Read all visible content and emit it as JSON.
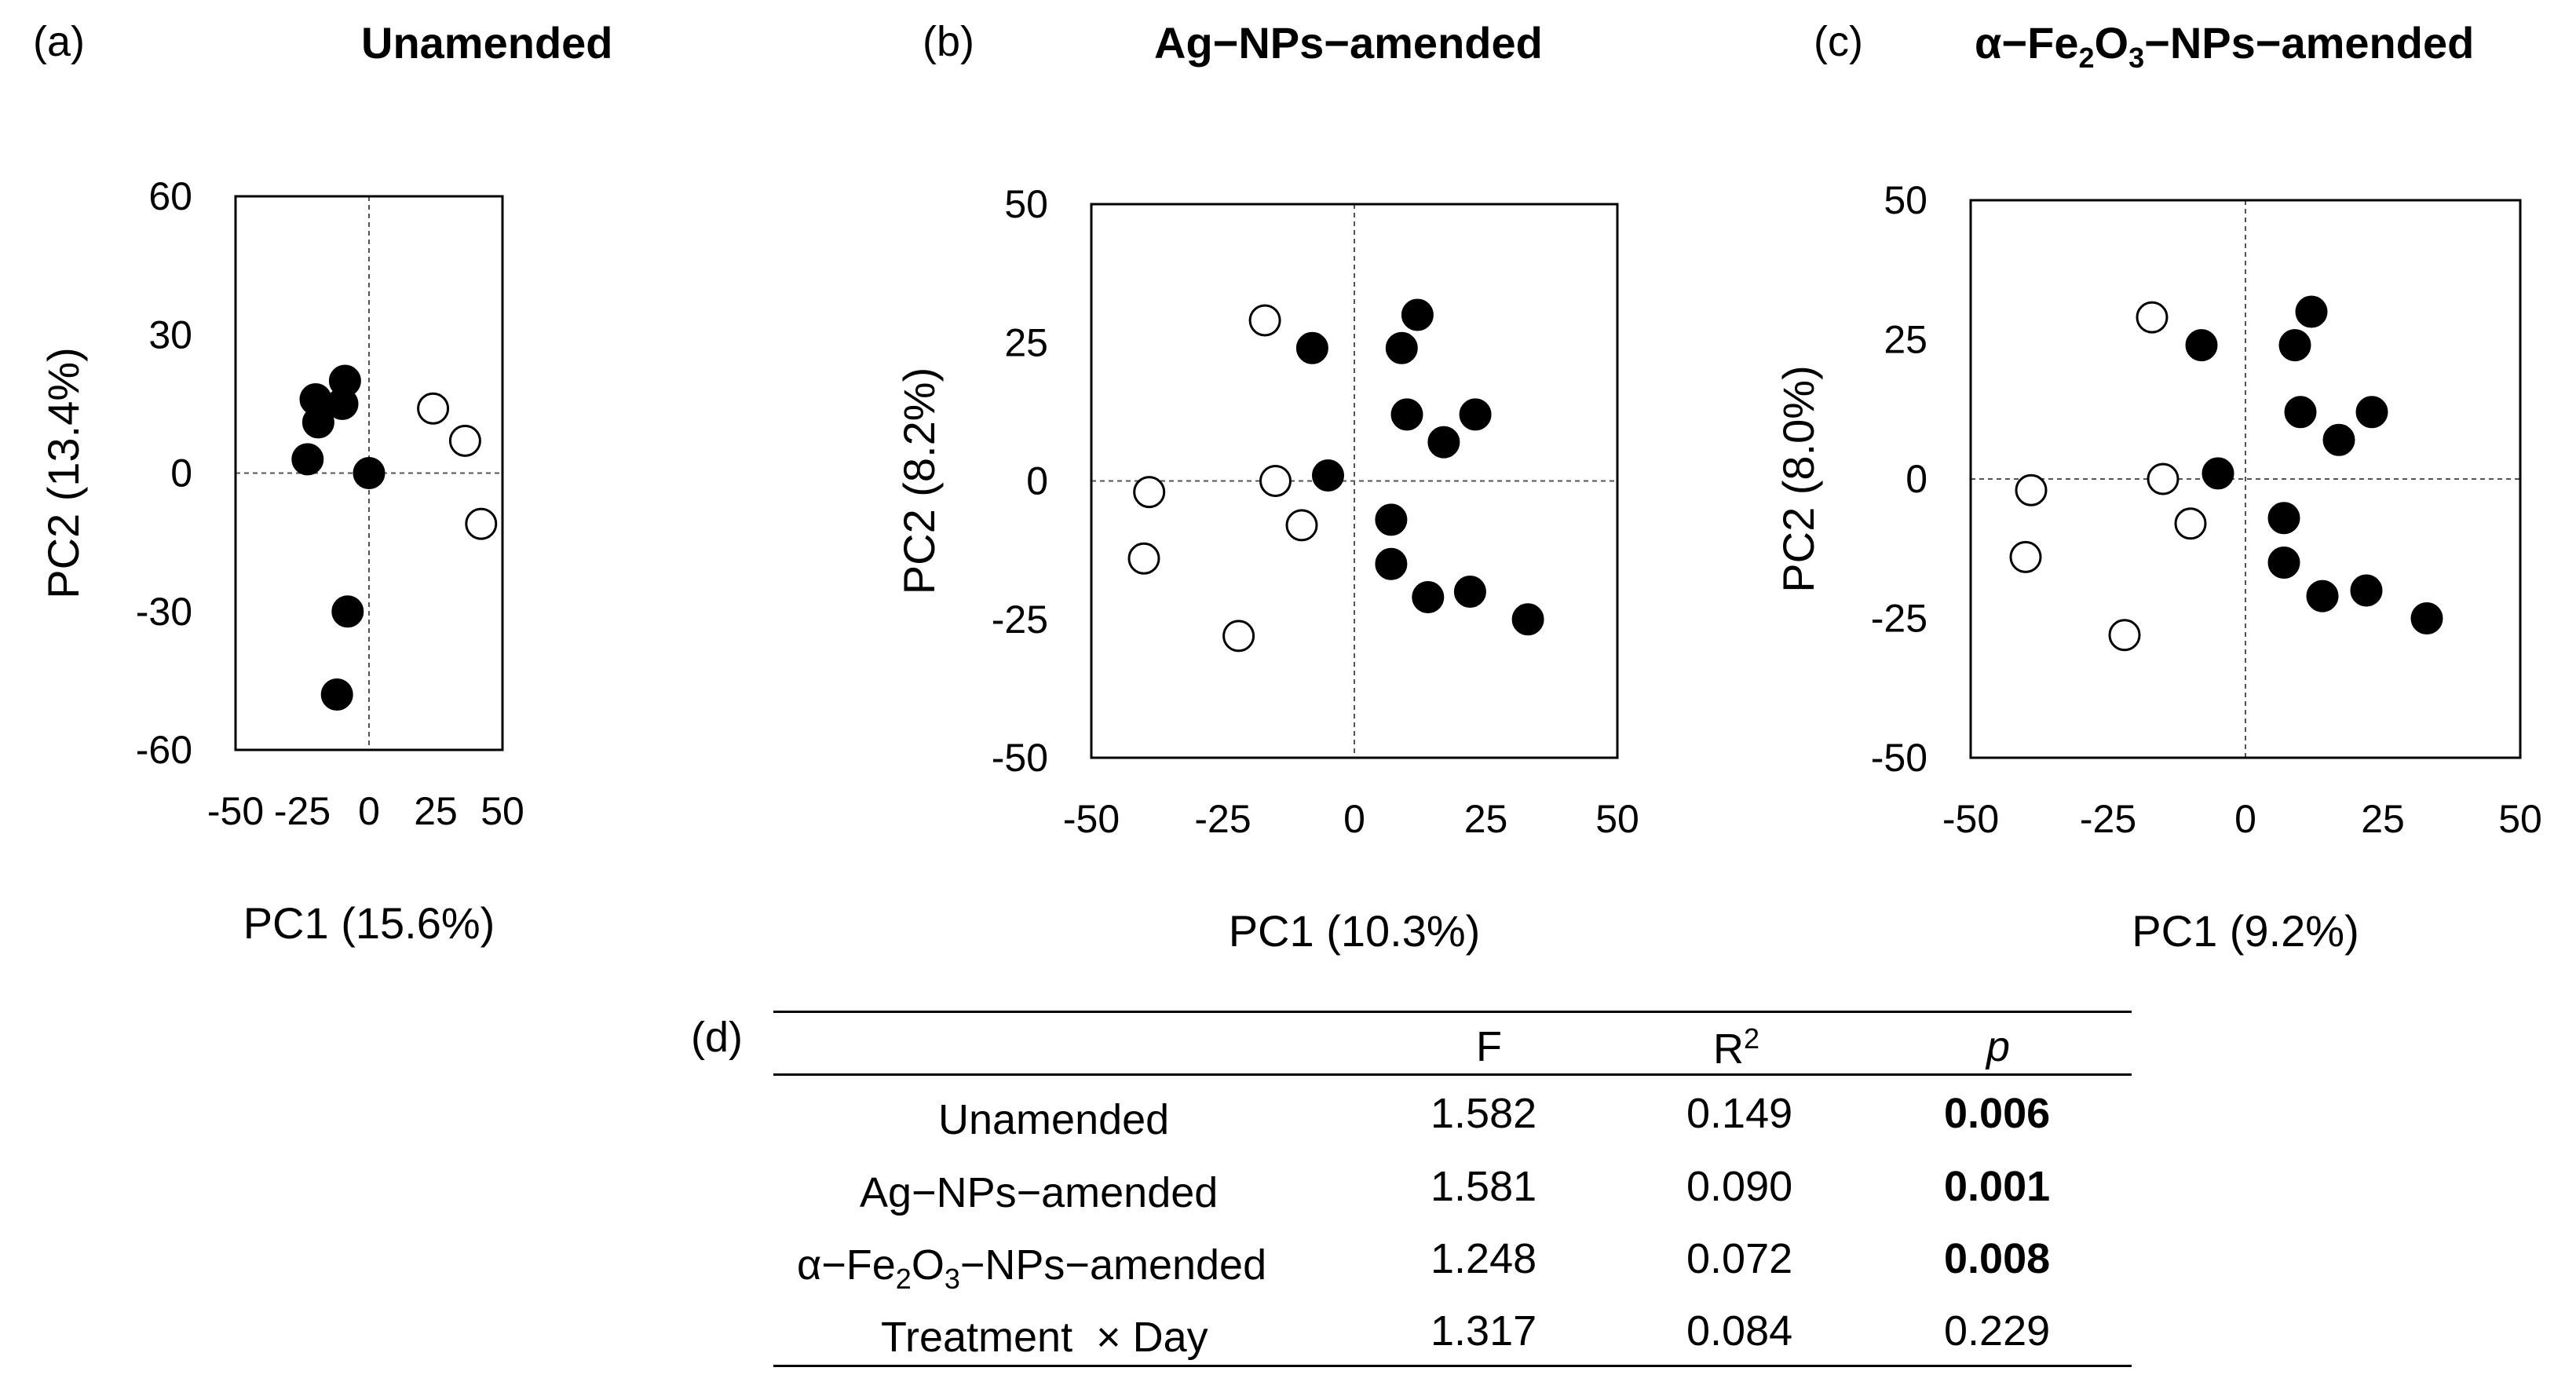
{
  "chart_data": [
    {
      "type": "scatter",
      "panel_label": "(a)",
      "title": "Unamended",
      "xlabel": "PC1 (15.6%)",
      "ylabel": "PC2 (13.4%)",
      "xlim": [
        -50,
        50
      ],
      "ylim": [
        -60,
        60
      ],
      "xticks": [
        -50,
        -25,
        0,
        25,
        50
      ],
      "yticks": [
        -60,
        -30,
        0,
        30,
        60
      ],
      "series": [
        {
          "name": "filled",
          "fill": "#000000",
          "points": [
            [
              -20,
              16
            ],
            [
              -19,
              11
            ],
            [
              -23,
              3
            ],
            [
              -10,
              15
            ],
            [
              -9,
              20
            ],
            [
              0,
              0
            ],
            [
              -8,
              -30
            ],
            [
              -12,
              -48
            ]
          ]
        },
        {
          "name": "open",
          "fill": "#ffffff",
          "points": [
            [
              24,
              14
            ],
            [
              36,
              7
            ],
            [
              42,
              -11
            ]
          ]
        }
      ]
    },
    {
      "type": "scatter",
      "panel_label": "(b)",
      "title": "Ag−NPs−amended",
      "xlabel": "PC1 (10.3%)",
      "ylabel": "PC2 (8.2%)",
      "xlim": [
        -50,
        50
      ],
      "ylim": [
        -50,
        50
      ],
      "xticks": [
        -50,
        -25,
        0,
        25,
        50
      ],
      "yticks": [
        -50,
        -25,
        0,
        25,
        50
      ],
      "series": [
        {
          "name": "filled",
          "fill": "#000000",
          "points": [
            [
              -8,
              24
            ],
            [
              9,
              24
            ],
            [
              12,
              30
            ],
            [
              10,
              12
            ],
            [
              17,
              7
            ],
            [
              23,
              12
            ],
            [
              -5,
              1
            ],
            [
              7,
              -7
            ],
            [
              7,
              -15
            ],
            [
              14,
              -21
            ],
            [
              22,
              -20
            ],
            [
              33,
              -25
            ]
          ]
        },
        {
          "name": "open",
          "fill": "#ffffff",
          "points": [
            [
              -17,
              29
            ],
            [
              -39,
              -2
            ],
            [
              -40,
              -14
            ],
            [
              -15,
              0
            ],
            [
              -10,
              -8
            ],
            [
              -22,
              -28
            ]
          ]
        }
      ]
    },
    {
      "type": "scatter",
      "panel_label": "(c)",
      "title_parts": [
        "α−Fe",
        "2",
        "O",
        "3",
        "−NPs−amended"
      ],
      "xlabel": "PC1 (9.2%)",
      "ylabel": "PC2 (8.0%)",
      "xlim": [
        -50,
        50
      ],
      "ylim": [
        -50,
        50
      ],
      "xticks": [
        -50,
        -25,
        0,
        25,
        50
      ],
      "yticks": [
        -50,
        -25,
        0,
        25,
        50
      ],
      "series": [
        {
          "name": "filled",
          "fill": "#000000",
          "points": [
            [
              -8,
              24
            ],
            [
              9,
              24
            ],
            [
              12,
              30
            ],
            [
              10,
              12
            ],
            [
              17,
              7
            ],
            [
              23,
              12
            ],
            [
              -5,
              1
            ],
            [
              7,
              -7
            ],
            [
              7,
              -15
            ],
            [
              14,
              -21
            ],
            [
              22,
              -20
            ],
            [
              33,
              -25
            ]
          ]
        },
        {
          "name": "open",
          "fill": "#ffffff",
          "points": [
            [
              -17,
              29
            ],
            [
              -39,
              -2
            ],
            [
              -40,
              -14
            ],
            [
              -15,
              0
            ],
            [
              -10,
              -8
            ],
            [
              -22,
              -28
            ]
          ]
        }
      ]
    },
    {
      "type": "table",
      "panel_label": "(d)",
      "columns": [
        "F",
        "R",
        "2",
        "p"
      ],
      "rows": [
        {
          "label": "Unamended",
          "F": "1.582",
          "R2": "0.149",
          "p": "0.006",
          "p_bold": true
        },
        {
          "label": "Ag−NPs−amended",
          "F": "1.581",
          "R2": "0.090",
          "p": "0.001",
          "p_bold": true
        },
        {
          "label_parts": [
            "α−Fe",
            "2",
            "O",
            "3",
            "−NPs−amended"
          ],
          "F": "1.248",
          "R2": "0.072",
          "p": "0.008",
          "p_bold": true
        },
        {
          "label": "Treatment  × Day",
          "F": "1.317",
          "R2": "0.084",
          "p": "0.229",
          "p_bold": false
        }
      ]
    }
  ]
}
